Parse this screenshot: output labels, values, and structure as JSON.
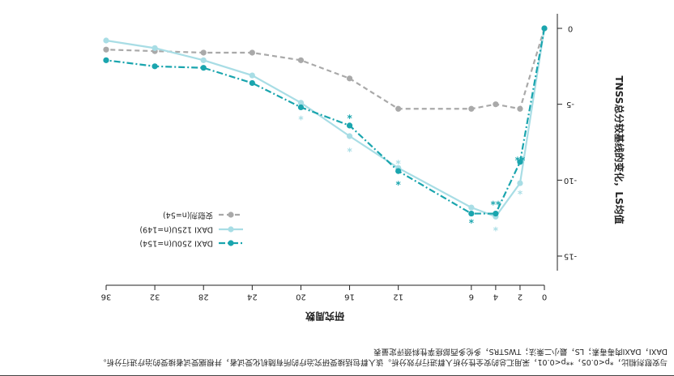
{
  "chart_data": {
    "type": "line",
    "ylabel": "TNSS总分较基线的变化，LS均值",
    "xlabel": "研究周数",
    "x_ticks": [
      0,
      2,
      4,
      6,
      12,
      16,
      20,
      24,
      28,
      32,
      36
    ],
    "y_ticks": [
      0,
      -5,
      -10,
      -15
    ],
    "xlim": [
      0,
      36
    ],
    "ylim": [
      -15,
      0
    ],
    "series": [
      {
        "name": "安慰剂(n=54)",
        "color": "#a9a9a9",
        "marker_color": "#a9a9a9",
        "dash": "6,4",
        "x": [
          0,
          2,
          4,
          6,
          12,
          16,
          20,
          24,
          28,
          32,
          36
        ],
        "y": [
          0,
          -5.3,
          -5.0,
          -5.3,
          -5.3,
          -3.3,
          -2.1,
          -1.6,
          -1.6,
          -1.5,
          -1.4
        ]
      },
      {
        "name": "DAXI 125U(n=149)",
        "color": "#a8dde5",
        "marker_color": "#a8dde5",
        "dash": "",
        "x": [
          0,
          2,
          4,
          6,
          12,
          16,
          20,
          24,
          28,
          32,
          36
        ],
        "y": [
          0,
          -10.2,
          -12.4,
          -11.8,
          -9.2,
          -7.1,
          -4.9,
          -3.1,
          -2.1,
          -1.3,
          -0.8
        ]
      },
      {
        "name": "DAXI 250U(n=154)",
        "color": "#1aa5ae",
        "marker_color": "#1aa5ae",
        "dash": "8,3,2,3",
        "x": [
          0,
          2,
          4,
          6,
          12,
          16,
          20,
          24,
          28,
          32,
          36
        ],
        "y": [
          0,
          -8.8,
          -12.2,
          -12.2,
          -9.4,
          -6.4,
          -5.2,
          -3.6,
          -2.6,
          -2.5,
          -2.1
        ]
      }
    ],
    "significance_marks": [
      {
        "x": 2,
        "y": -10.7,
        "text": "*",
        "color": "#a8dde5"
      },
      {
        "x": 4,
        "y": -13.1,
        "text": "*",
        "color": "#a8dde5"
      },
      {
        "x": 6,
        "y": -12.6,
        "text": "*",
        "color": "#1aa5ae"
      },
      {
        "x": 12,
        "y": -8.7,
        "text": "*",
        "color": "#a8dde5"
      },
      {
        "x": 16,
        "y": -7.9,
        "text": "*",
        "color": "#a8dde5"
      },
      {
        "x": 20,
        "y": -5.8,
        "text": "*",
        "color": "#a8dde5"
      },
      {
        "x": 2,
        "y": -8.5,
        "text": "**",
        "color": "#1aa5ae"
      },
      {
        "x": 4,
        "y": -11.4,
        "text": "**",
        "color": "#1aa5ae"
      },
      {
        "x": 12,
        "y": -10.1,
        "text": "*",
        "color": "#1aa5ae"
      },
      {
        "x": 16,
        "y": -5.7,
        "text": "*",
        "color": "#1aa5ae"
      }
    ],
    "legend_position": "middle-left",
    "grid": false
  },
  "footnote": {
    "line1": "与安慰剂相比，*p<0.05，**p<0.01，采用汇总的安全性分析人群进行疗效分析。该人群包括接受研究治疗的所有随机化受试者，并根据受试者接受的治疗进行分析。",
    "line2": "DAXI，DAXI肉毒毒素；LS，最小二乘法；TWSTRS，多伦多西部痉挛性斜颈评定量表"
  }
}
